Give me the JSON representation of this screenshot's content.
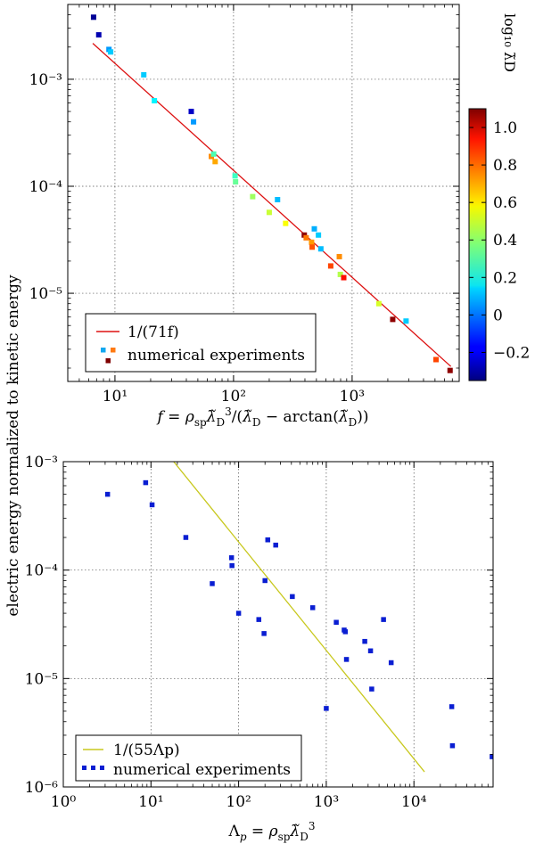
{
  "shared_ylabel": "electric energy normalized to kinetic energy",
  "chart_data": [
    {
      "type": "scatter",
      "id": "top",
      "xscale": "log",
      "yscale": "log",
      "xlim": [
        4,
        8000
      ],
      "ylim": [
        1.5e-06,
        0.005
      ],
      "x_ticks": [
        {
          "value": 10,
          "label": "10¹"
        },
        {
          "value": 100,
          "label": "10²"
        },
        {
          "value": 1000,
          "label": "10³"
        }
      ],
      "y_ticks": [
        {
          "value": 1e-05,
          "label": "10⁻⁵"
        },
        {
          "value": 0.0001,
          "label": "10⁻⁴"
        },
        {
          "value": 0.001,
          "label": "10⁻³"
        }
      ],
      "xlabel": "f = ρsp λ̃D³/(λ̃D − arctan(λ̃D))",
      "grid": true,
      "legend": {
        "position": "lower-left",
        "fit_label": "1/(71f)",
        "points_label": "numerical experiments"
      },
      "fit": {
        "label": "1/(71f)",
        "coefficient": 71,
        "x_range": [
          6.5,
          6800
        ],
        "color": "#dd1111"
      },
      "colorbar": {
        "label": "log₁₀ λ̃D",
        "min": -0.35,
        "max": 1.1,
        "ticks": [
          {
            "value": -0.2,
            "label": "−0.2"
          },
          {
            "value": 0,
            "label": "0"
          },
          {
            "value": 0.2,
            "label": "0.2"
          },
          {
            "value": 0.4,
            "label": "0.4"
          },
          {
            "value": 0.6,
            "label": "0.6"
          },
          {
            "value": 0.8,
            "label": "0.8"
          },
          {
            "value": 1.0,
            "label": "1.0"
          }
        ]
      },
      "points": [
        {
          "x": 6.6,
          "y": 0.0038,
          "c": -0.32
        },
        {
          "x": 7.3,
          "y": 0.0026,
          "c": -0.28
        },
        {
          "x": 8.9,
          "y": 0.0019,
          "c": 0.05
        },
        {
          "x": 9.2,
          "y": 0.0018,
          "c": 0.12
        },
        {
          "x": 17.5,
          "y": 0.0011,
          "c": 0.12
        },
        {
          "x": 21.5,
          "y": 0.00063,
          "c": 0.18
        },
        {
          "x": 44,
          "y": 0.0005,
          "c": -0.25
        },
        {
          "x": 46,
          "y": 0.0004,
          "c": 0.05
        },
        {
          "x": 65,
          "y": 0.00019,
          "c": 0.72
        },
        {
          "x": 70,
          "y": 0.00017,
          "c": 0.68
        },
        {
          "x": 68,
          "y": 0.0002,
          "c": 0.3
        },
        {
          "x": 103,
          "y": 0.000125,
          "c": 0.28
        },
        {
          "x": 104,
          "y": 0.00011,
          "c": 0.34
        },
        {
          "x": 145,
          "y": 8e-05,
          "c": 0.42
        },
        {
          "x": 200,
          "y": 5.7e-05,
          "c": 0.48
        },
        {
          "x": 235,
          "y": 7.5e-05,
          "c": 0.1
        },
        {
          "x": 275,
          "y": 4.5e-05,
          "c": 0.55
        },
        {
          "x": 395,
          "y": 3.5e-05,
          "c": 1.08
        },
        {
          "x": 410,
          "y": 3.3e-05,
          "c": 0.75
        },
        {
          "x": 455,
          "y": 3e-05,
          "c": 0.7
        },
        {
          "x": 460,
          "y": 2.7e-05,
          "c": 0.8
        },
        {
          "x": 480,
          "y": 4e-05,
          "c": 0.08
        },
        {
          "x": 520,
          "y": 3.5e-05,
          "c": 0.12
        },
        {
          "x": 545,
          "y": 2.6e-05,
          "c": 0.1
        },
        {
          "x": 660,
          "y": 1.8e-05,
          "c": 0.82
        },
        {
          "x": 780,
          "y": 2.2e-05,
          "c": 0.72
        },
        {
          "x": 795,
          "y": 1.5e-05,
          "c": 0.45
        },
        {
          "x": 850,
          "y": 1.4e-05,
          "c": 0.9
        },
        {
          "x": 1680,
          "y": 8e-06,
          "c": 0.5
        },
        {
          "x": 2200,
          "y": 5.7e-06,
          "c": 1.08
        },
        {
          "x": 2850,
          "y": 5.5e-06,
          "c": 0.12
        },
        {
          "x": 5100,
          "y": 2.4e-06,
          "c": 0.82
        },
        {
          "x": 6700,
          "y": 1.9e-06,
          "c": 1.08
        }
      ]
    },
    {
      "type": "scatter",
      "id": "bottom",
      "xscale": "log",
      "yscale": "log",
      "xlim": [
        1,
        80000
      ],
      "ylim": [
        1e-06,
        0.001
      ],
      "x_ticks": [
        {
          "value": 1,
          "label": "10⁰"
        },
        {
          "value": 10,
          "label": "10¹"
        },
        {
          "value": 100,
          "label": "10²"
        },
        {
          "value": 1000,
          "label": "10³"
        },
        {
          "value": 10000,
          "label": "10⁴"
        }
      ],
      "y_ticks": [
        {
          "value": 1e-06,
          "label": "10⁻⁶"
        },
        {
          "value": 1e-05,
          "label": "10⁻⁵"
        },
        {
          "value": 0.0001,
          "label": "10⁻⁴"
        },
        {
          "value": 0.001,
          "label": "10⁻³"
        }
      ],
      "xlabel": "Λp = ρsp λ̃D³",
      "grid": true,
      "legend": {
        "position": "lower-left",
        "fit_label": "1/(55Λp)",
        "points_label": "numerical experiments"
      },
      "fit": {
        "label": "1/(55Λp)",
        "coefficient": 55,
        "x_range": [
          18,
          13200
        ],
        "color": "#c8c81e"
      },
      "point_color": "#0a1ed2",
      "points": [
        {
          "x": 3.2,
          "y": 0.0005
        },
        {
          "x": 8.7,
          "y": 0.00064
        },
        {
          "x": 10.3,
          "y": 0.0004
        },
        {
          "x": 25,
          "y": 0.0002
        },
        {
          "x": 50,
          "y": 7.5e-05
        },
        {
          "x": 83,
          "y": 0.00013
        },
        {
          "x": 84,
          "y": 0.00011
        },
        {
          "x": 100,
          "y": 4e-05
        },
        {
          "x": 170,
          "y": 3.5e-05
        },
        {
          "x": 195,
          "y": 2.6e-05
        },
        {
          "x": 200,
          "y": 8e-05
        },
        {
          "x": 215,
          "y": 0.00019
        },
        {
          "x": 265,
          "y": 0.00017
        },
        {
          "x": 410,
          "y": 5.7e-05
        },
        {
          "x": 700,
          "y": 4.5e-05
        },
        {
          "x": 1000,
          "y": 5.3e-06
        },
        {
          "x": 1300,
          "y": 3.3e-05
        },
        {
          "x": 1600,
          "y": 2.8e-05
        },
        {
          "x": 1650,
          "y": 2.7e-05
        },
        {
          "x": 1700,
          "y": 1.5e-05
        },
        {
          "x": 2750,
          "y": 2.2e-05
        },
        {
          "x": 3200,
          "y": 1.8e-05
        },
        {
          "x": 3300,
          "y": 8e-06
        },
        {
          "x": 4500,
          "y": 3.5e-05
        },
        {
          "x": 5500,
          "y": 1.4e-05
        },
        {
          "x": 27000,
          "y": 5.5e-06
        },
        {
          "x": 27500,
          "y": 2.4e-06
        },
        {
          "x": 78000,
          "y": 1.9e-06
        }
      ]
    }
  ]
}
